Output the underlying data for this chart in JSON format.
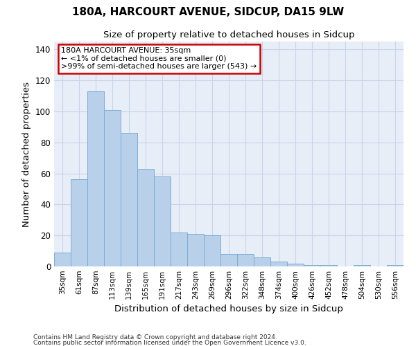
{
  "title1": "180A, HARCOURT AVENUE, SIDCUP, DA15 9LW",
  "title2": "Size of property relative to detached houses in Sidcup",
  "xlabel": "Distribution of detached houses by size in Sidcup",
  "ylabel": "Number of detached properties",
  "categories": [
    "35sqm",
    "61sqm",
    "87sqm",
    "113sqm",
    "139sqm",
    "165sqm",
    "191sqm",
    "217sqm",
    "243sqm",
    "269sqm",
    "296sqm",
    "322sqm",
    "348sqm",
    "374sqm",
    "400sqm",
    "426sqm",
    "452sqm",
    "478sqm",
    "504sqm",
    "530sqm",
    "556sqm"
  ],
  "values": [
    9,
    56,
    113,
    101,
    86,
    63,
    58,
    22,
    21,
    20,
    8,
    8,
    6,
    3,
    2,
    1,
    1,
    0,
    1,
    0,
    1
  ],
  "bar_color": "#b8d0ea",
  "bar_edge_color": "#7aadd4",
  "annotation_line1": "180A HARCOURT AVENUE: 35sqm",
  "annotation_line2": "← <1% of detached houses are smaller (0)",
  "annotation_line3": ">99% of semi-detached houses are larger (543) →",
  "annotation_box_color": "#ffffff",
  "annotation_box_edge_color": "#cc0000",
  "grid_color": "#c8d4e8",
  "bg_color": "#e8eef8",
  "ylim": [
    0,
    145
  ],
  "yticks": [
    0,
    20,
    40,
    60,
    80,
    100,
    120,
    140
  ],
  "footnote1": "Contains HM Land Registry data © Crown copyright and database right 2024.",
  "footnote2": "Contains public sector information licensed under the Open Government Licence v3.0."
}
